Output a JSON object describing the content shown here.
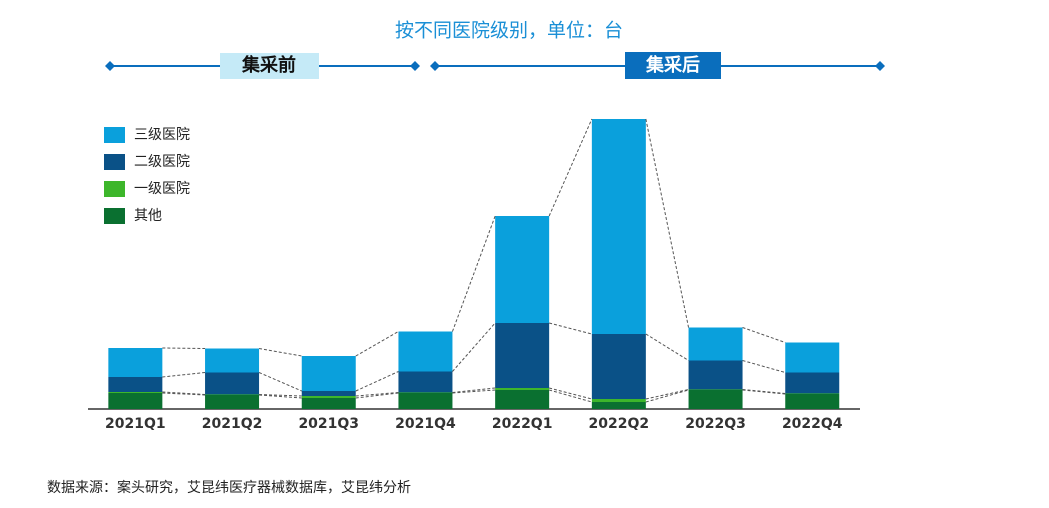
{
  "chart_data": {
    "type": "stacked-bar",
    "title": "按不同医院级别，单位：台",
    "phases": [
      "集采前",
      "集采后"
    ],
    "categories": [
      "2021Q1",
      "2021Q2",
      "2021Q3",
      "2021Q4",
      "2022Q1",
      "2022Q2",
      "2022Q3",
      "2022Q4"
    ],
    "series": [
      {
        "name": "三级医院",
        "color": "#0aa0dc",
        "values": [
          29,
          24,
          35,
          40,
          107,
          215,
          33,
          30
        ]
      },
      {
        "name": "二级医院",
        "color": "#0a5187",
        "values": [
          15,
          22,
          5,
          21,
          65,
          65,
          29,
          21
        ]
      },
      {
        "name": "一级医院",
        "color": "#3db62b",
        "values": [
          1,
          0.5,
          2,
          0.5,
          2,
          3,
          0.5,
          0.5
        ]
      },
      {
        "name": "其他",
        "color": "#0a7030",
        "values": [
          16,
          14,
          11,
          16,
          19,
          7,
          19,
          15
        ]
      }
    ],
    "ylim": [
      0,
      300
    ],
    "source": "数据来源：案头研究，艾昆纬医疗器械数据库，艾昆纬分析"
  }
}
